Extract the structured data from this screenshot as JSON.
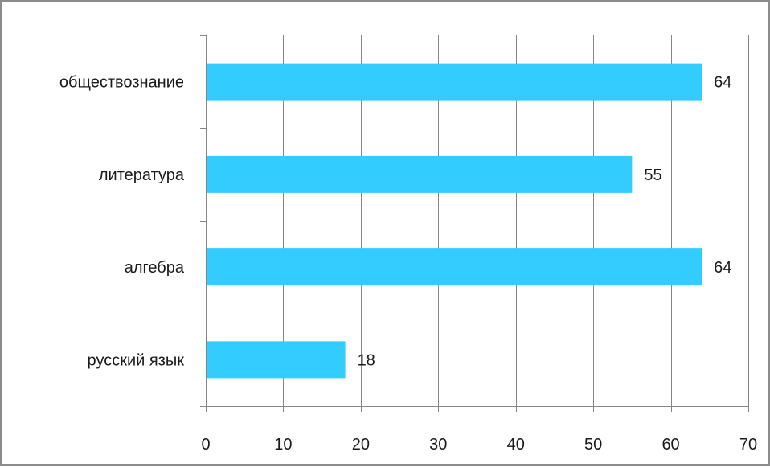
{
  "chart_data": {
    "type": "bar",
    "orientation": "horizontal",
    "categories": [
      "обществознание",
      "литература",
      "алгебра",
      "русский язык"
    ],
    "values": [
      64,
      55,
      64,
      18
    ],
    "data_labels": [
      "64",
      "55",
      "64",
      "18"
    ],
    "xlim": [
      0,
      70
    ],
    "x_ticks": [
      "0",
      "10",
      "20",
      "30",
      "40",
      "50",
      "60",
      "70"
    ],
    "grid": "vertical",
    "legend": "none",
    "bar_color": "#33CCFF",
    "grid_color": "#868686"
  }
}
